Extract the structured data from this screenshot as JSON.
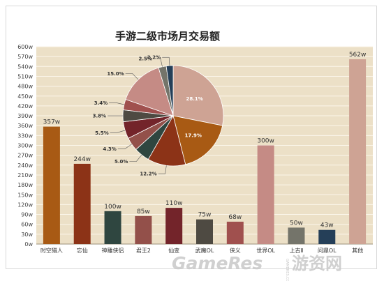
{
  "chart_data": [
    {
      "type": "bar",
      "title": "手游二级市场月交易额",
      "categories": [
        "时空猎人",
        "忘仙",
        "神雕侠侣",
        "君王2",
        "仙变",
        "武魔OL",
        "侠义",
        "世界OL",
        "上古Ⅱ",
        "问鼎OL",
        "其他"
      ],
      "values": [
        357,
        244,
        100,
        85,
        110,
        75,
        68,
        300,
        50,
        43,
        562
      ],
      "value_labels": [
        "357w",
        "244w",
        "100w",
        "85w",
        "110w",
        "75w",
        "68w",
        "300w",
        "50w",
        "43w",
        "562w"
      ],
      "colors": [
        "#a85a14",
        "#8c3317",
        "#2f4640",
        "#93504a",
        "#73242a",
        "#4e4a42",
        "#a0504e",
        "#c58b85",
        "#74746a",
        "#253f58",
        "#cea394"
      ],
      "ylim": [
        0,
        600
      ],
      "yticks": [
        "0w",
        "30w",
        "60w",
        "90w",
        "120w",
        "150w",
        "180w",
        "210w",
        "240w",
        "270w",
        "300w",
        "330w",
        "360w",
        "390w",
        "420w",
        "450w",
        "480w",
        "510w",
        "540w",
        "570w",
        "600w"
      ],
      "grid": true,
      "background": "#ece0c7"
    },
    {
      "type": "pie",
      "slices": [
        {
          "label": "28.1%",
          "value": 28.1,
          "color": "#cea394",
          "inside": true
        },
        {
          "label": "17.9%",
          "value": 17.9,
          "color": "#a85a14",
          "inside": true
        },
        {
          "label": "12.2%",
          "value": 12.2,
          "color": "#8c3317",
          "inside": false
        },
        {
          "label": "5.0%",
          "value": 5.0,
          "color": "#2f4640",
          "inside": false
        },
        {
          "label": "4.3%",
          "value": 4.3,
          "color": "#93504a",
          "inside": false
        },
        {
          "label": "5.5%",
          "value": 5.5,
          "color": "#73242a",
          "inside": false
        },
        {
          "label": "3.8%",
          "value": 3.8,
          "color": "#4e4a42",
          "inside": false
        },
        {
          "label": "3.4%",
          "value": 3.4,
          "color": "#a0504e",
          "inside": false
        },
        {
          "label": "15.0%",
          "value": 15.0,
          "color": "#c58b85",
          "inside": false
        },
        {
          "label": "2.5%",
          "value": 2.5,
          "color": "#74746a",
          "inside": false
        },
        {
          "label": "2.2%",
          "value": 2.2,
          "color": "#253f58",
          "inside": false
        }
      ]
    }
  ],
  "watermark": {
    "latin": "GameRes",
    "han": "游资网",
    "small": "GAMERES.COM",
    "color": "#c8c8c8"
  }
}
